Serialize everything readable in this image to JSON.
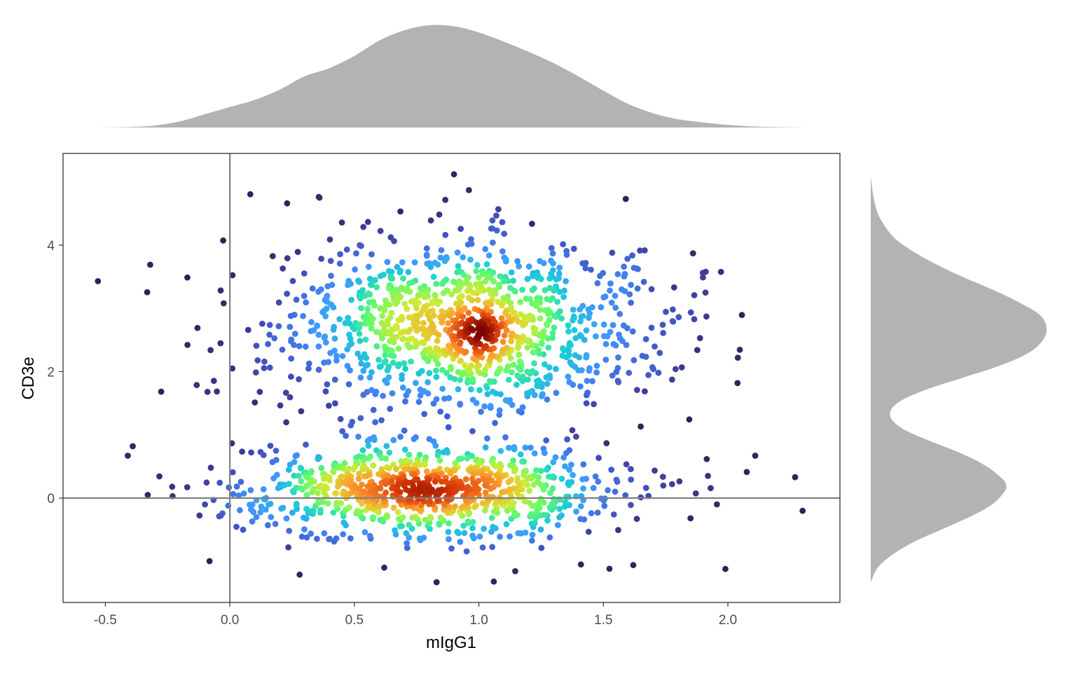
{
  "chart_data": {
    "type": "scatter",
    "title": "",
    "xlabel": "mIgG1",
    "ylabel": "CD3e",
    "x_ticks": [
      "-0.5",
      "0.0",
      "0.5",
      "1.0",
      "1.5",
      "2.0"
    ],
    "y_ticks": [
      "0",
      "2",
      "4"
    ],
    "xlim": [
      -0.67,
      2.45
    ],
    "ylim": [
      -1.65,
      5.45
    ],
    "reference_lines": {
      "x": 0,
      "y": 0
    },
    "point_color_scale": "point density, dark purple (low) through blue, green, yellow to dark red (high)",
    "populations": [
      {
        "name": "",
        "center": [
          0.95,
          2.7
        ],
        "sd": [
          0.37,
          0.65
        ],
        "n": 1150
      },
      {
        "name": "",
        "center": [
          0.78,
          0.15
        ],
        "sd": [
          0.38,
          0.38
        ],
        "n": 900
      }
    ],
    "outlier_points": [
      [
        -0.53,
        3.43
      ],
      [
        -0.32,
        3.69
      ],
      [
        -0.41,
        0.67
      ],
      [
        -0.39,
        0.82
      ],
      [
        -0.33,
        0.05
      ],
      [
        -0.23,
        0.03
      ],
      [
        0.9,
        5.12
      ],
      [
        0.96,
        4.87
      ],
      [
        1.59,
        4.73
      ],
      [
        0.36,
        4.75
      ],
      [
        0.23,
        4.66
      ],
      [
        1.91,
        3.25
      ],
      [
        1.86,
        3.87
      ],
      [
        1.9,
        3.49
      ],
      [
        2.04,
        2.22
      ],
      [
        2.11,
        0.67
      ],
      [
        2.27,
        0.33
      ],
      [
        2.3,
        -0.2
      ],
      [
        1.99,
        -1.12
      ],
      [
        1.92,
        0.35
      ],
      [
        1.85,
        -0.32
      ],
      [
        0.28,
        -1.21
      ],
      [
        0.62,
        -1.1
      ],
      [
        0.83,
        -1.33
      ],
      [
        1.06,
        -1.32
      ],
      [
        1.41,
        -1.05
      ],
      [
        1.62,
        -1.06
      ],
      [
        1.79,
        2.04
      ],
      [
        1.78,
        2.79
      ],
      [
        0.29,
        -0.61
      ],
      [
        0.09,
        -0.37
      ],
      [
        -0.1,
        -0.1
      ],
      [
        0.12,
        1.68
      ],
      [
        -0.09,
        1.68
      ],
      [
        0.01,
        2.05
      ],
      [
        -0.13,
        2.69
      ]
    ],
    "marginal_x_density": {
      "x": [
        -0.52,
        -0.4,
        -0.3,
        -0.2,
        -0.1,
        0.0,
        0.1,
        0.2,
        0.3,
        0.4,
        0.5,
        0.6,
        0.7,
        0.8,
        0.9,
        1.0,
        1.1,
        1.2,
        1.3,
        1.4,
        1.5,
        1.6,
        1.7,
        1.8,
        1.9,
        2.0,
        2.1,
        2.2,
        2.31
      ],
      "density": [
        0.0,
        0.005,
        0.02,
        0.06,
        0.13,
        0.2,
        0.27,
        0.37,
        0.5,
        0.58,
        0.7,
        0.85,
        0.95,
        1.0,
        0.99,
        0.93,
        0.84,
        0.74,
        0.63,
        0.5,
        0.36,
        0.23,
        0.14,
        0.08,
        0.05,
        0.025,
        0.01,
        0.004,
        0.0
      ]
    },
    "marginal_y_density": {
      "y": [
        -1.33,
        -1.1,
        -0.9,
        -0.7,
        -0.5,
        -0.3,
        -0.1,
        0.1,
        0.2,
        0.3,
        0.5,
        0.7,
        0.9,
        1.1,
        1.3,
        1.5,
        1.7,
        1.9,
        2.1,
        2.3,
        2.5,
        2.7,
        2.9,
        3.1,
        3.3,
        3.5,
        3.7,
        3.9,
        4.1,
        4.3,
        4.5,
        4.7,
        4.9,
        5.1
      ],
      "density": [
        0.0,
        0.04,
        0.12,
        0.24,
        0.4,
        0.56,
        0.69,
        0.76,
        0.77,
        0.75,
        0.66,
        0.52,
        0.34,
        0.18,
        0.11,
        0.15,
        0.3,
        0.52,
        0.74,
        0.9,
        0.98,
        1.0,
        0.96,
        0.84,
        0.69,
        0.52,
        0.37,
        0.24,
        0.14,
        0.08,
        0.04,
        0.02,
        0.008,
        0.0
      ]
    }
  },
  "colors": {
    "marginal_fill": "#b3b3b3",
    "panel_border": "#333333",
    "reference_line": "#808080",
    "point_ramp": [
      "#30123b",
      "#4454c4",
      "#4294ff",
      "#1bcfd4",
      "#62fc6b",
      "#d2e935",
      "#fe9b2d",
      "#db3a07",
      "#7a0403"
    ]
  }
}
